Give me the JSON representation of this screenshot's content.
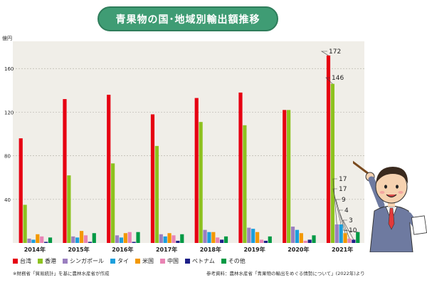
{
  "title": "青果物の国･地域別輸出額推移",
  "chart_data": {
    "type": "bar",
    "ylabel": "億円",
    "ylim": [
      0,
      185
    ],
    "yticks": [
      40,
      80,
      120,
      160
    ],
    "grid": true,
    "legend_position": "bottom",
    "categories": [
      "2014年",
      "2015年",
      "2016年",
      "2017年",
      "2018年",
      "2019年",
      "2020年",
      "2021年"
    ],
    "series": [
      {
        "name": "台湾",
        "color": "#e60012",
        "values": [
          96,
          132,
          136,
          118,
          133,
          138,
          122,
          172
        ]
      },
      {
        "name": "香港",
        "color": "#8dc21f",
        "values": [
          35,
          62,
          73,
          89,
          111,
          108,
          122,
          146
        ]
      },
      {
        "name": "シンガポール",
        "color": "#9b7fc0",
        "values": [
          4,
          6,
          7,
          8,
          12,
          14,
          15,
          17
        ]
      },
      {
        "name": "タイ",
        "color": "#1b9fdc",
        "values": [
          3,
          5,
          5,
          6,
          10,
          13,
          12,
          17
        ]
      },
      {
        "name": "米国",
        "color": "#f39800",
        "values": [
          8,
          11,
          9,
          9,
          10,
          10,
          9,
          9
        ]
      },
      {
        "name": "中国",
        "color": "#e984b4",
        "values": [
          6,
          7,
          10,
          7,
          5,
          3,
          2,
          4
        ]
      },
      {
        "name": "ベトナム",
        "color": "#1d2088",
        "values": [
          1,
          1,
          1,
          2,
          3,
          2,
          3,
          3
        ]
      },
      {
        "name": "その他",
        "color": "#009944",
        "values": [
          5,
          9,
          10,
          8,
          6,
          6,
          7,
          10
        ]
      }
    ],
    "annotations": [
      {
        "series": "台湾",
        "category": "2021年",
        "text": "172"
      },
      {
        "series": "香港",
        "category": "2021年",
        "text": "146"
      },
      {
        "series": "シンガポール",
        "category": "2021年",
        "text": "17"
      },
      {
        "series": "タイ",
        "category": "2021年",
        "text": "17"
      },
      {
        "series": "米国",
        "category": "2021年",
        "text": "9"
      },
      {
        "series": "中国",
        "category": "2021年",
        "text": "4"
      },
      {
        "series": "ベトナム",
        "category": "2021年",
        "text": "3"
      },
      {
        "series": "その他",
        "category": "2021年",
        "text": "10"
      }
    ]
  },
  "notes": {
    "left": "※財務省「貿易統計」を基に農林水産省が作成",
    "right": "参考資料：農林水産省「青果物の輸出をめぐる情勢について」(2022年)より"
  }
}
